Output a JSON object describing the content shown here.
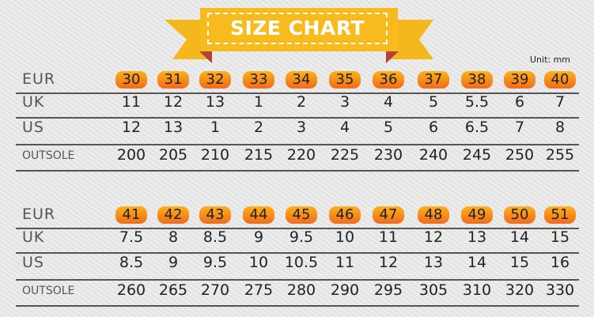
{
  "title": "SIZE CHART",
  "unit": "Unit:  mm",
  "colors": {
    "banner": "#f5b81c",
    "ribbon_fold": "#b5413a",
    "pill_top": "#fbb21a",
    "pill_bottom": "#f26a1b"
  },
  "tables": [
    {
      "rows": [
        {
          "label": "EUR",
          "values": [
            "30",
            "31",
            "32",
            "33",
            "34",
            "35",
            "36",
            "37",
            "38",
            "39",
            "40"
          ]
        },
        {
          "label": "UK",
          "values": [
            "11",
            "12",
            "13",
            "1",
            "2",
            "3",
            "4",
            "5",
            "5.5",
            "6",
            "7"
          ]
        },
        {
          "label": "US",
          "values": [
            "12",
            "13",
            "1",
            "2",
            "3",
            "4",
            "5",
            "6",
            "6.5",
            "7",
            "8"
          ]
        },
        {
          "label": "OUTSOLE",
          "values": [
            "200",
            "205",
            "210",
            "215",
            "220",
            "225",
            "230",
            "240",
            "245",
            "250",
            "255"
          ]
        }
      ]
    },
    {
      "rows": [
        {
          "label": "EUR",
          "values": [
            "41",
            "42",
            "43",
            "44",
            "45",
            "46",
            "47",
            "48",
            "49",
            "50",
            "51"
          ]
        },
        {
          "label": "UK",
          "values": [
            "7.5",
            "8",
            "8.5",
            "9",
            "9.5",
            "10",
            "11",
            "12",
            "13",
            "14",
            "15"
          ]
        },
        {
          "label": "US",
          "values": [
            "8.5",
            "9",
            "9.5",
            "10",
            "10.5",
            "11",
            "12",
            "13",
            "14",
            "15",
            "16"
          ]
        },
        {
          "label": "OUTSOLE",
          "values": [
            "260",
            "265",
            "270",
            "275",
            "280",
            "290",
            "295",
            "305",
            "310",
            "320",
            "330"
          ]
        }
      ]
    }
  ]
}
